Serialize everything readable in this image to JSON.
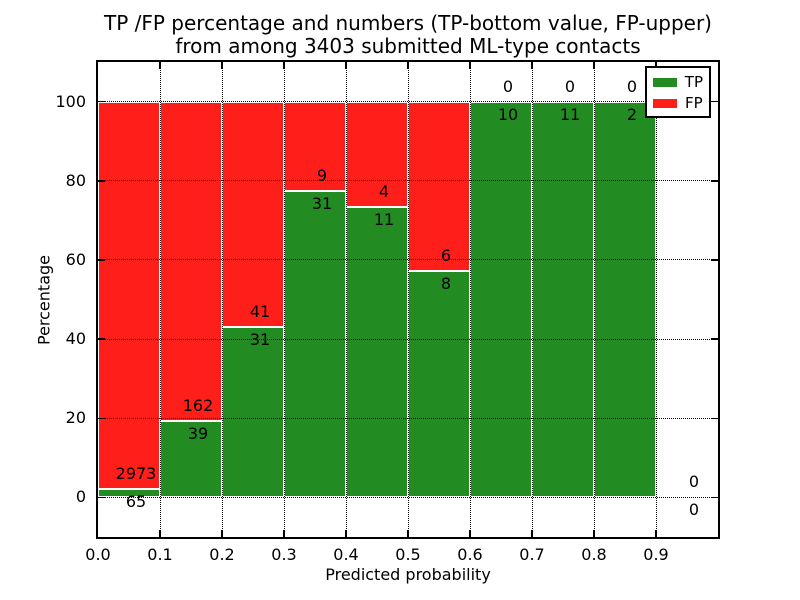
{
  "chart_data": {
    "type": "bar",
    "stacked": true,
    "normalized_to_percent": true,
    "title": "TP /FP percentage and numbers (TP-bottom value, FP-upper)\nfrom among 3403 submitted ML-type contacts",
    "title_lines": [
      "TP /FP percentage and numbers (TP-bottom value, FP-upper)",
      "from among 3403 submitted ML-type contacts"
    ],
    "xlabel": "Predicted probability",
    "ylabel": "Percentage",
    "total_contacts": 3403,
    "xlim": [
      0.0,
      1.0
    ],
    "ylim": [
      -10,
      110
    ],
    "grid": "dotted, on",
    "x_tick_labels": [
      "0.0",
      "0.1",
      "0.2",
      "0.3",
      "0.4",
      "0.5",
      "0.6",
      "0.7",
      "0.8",
      "0.9"
    ],
    "y_ticks": [
      0,
      20,
      40,
      60,
      80,
      100
    ],
    "y_tick_labels": [
      "0",
      "20",
      "40",
      "60",
      "80",
      "100"
    ],
    "categories": [
      "0.0-0.1",
      "0.1-0.2",
      "0.2-0.3",
      "0.3-0.4",
      "0.4-0.5",
      "0.5-0.6",
      "0.6-0.7",
      "0.7-0.8",
      "0.8-0.9",
      "0.9-1.0"
    ],
    "series": [
      {
        "name": "TP",
        "color": "#228b22",
        "values": [
          65,
          39,
          31,
          31,
          11,
          8,
          10,
          11,
          2,
          0
        ]
      },
      {
        "name": "FP",
        "color": "#ff1f1a",
        "values": [
          2973,
          162,
          41,
          9,
          4,
          6,
          0,
          0,
          0,
          0
        ]
      }
    ],
    "tp_percent": [
      2.14,
      19.4,
      43.06,
      77.5,
      73.33,
      57.14,
      100,
      100,
      100,
      0
    ],
    "legend": {
      "position": "upper right",
      "entries": [
        "TP",
        "FP"
      ]
    },
    "bar_edge_color": "#ffffff"
  }
}
